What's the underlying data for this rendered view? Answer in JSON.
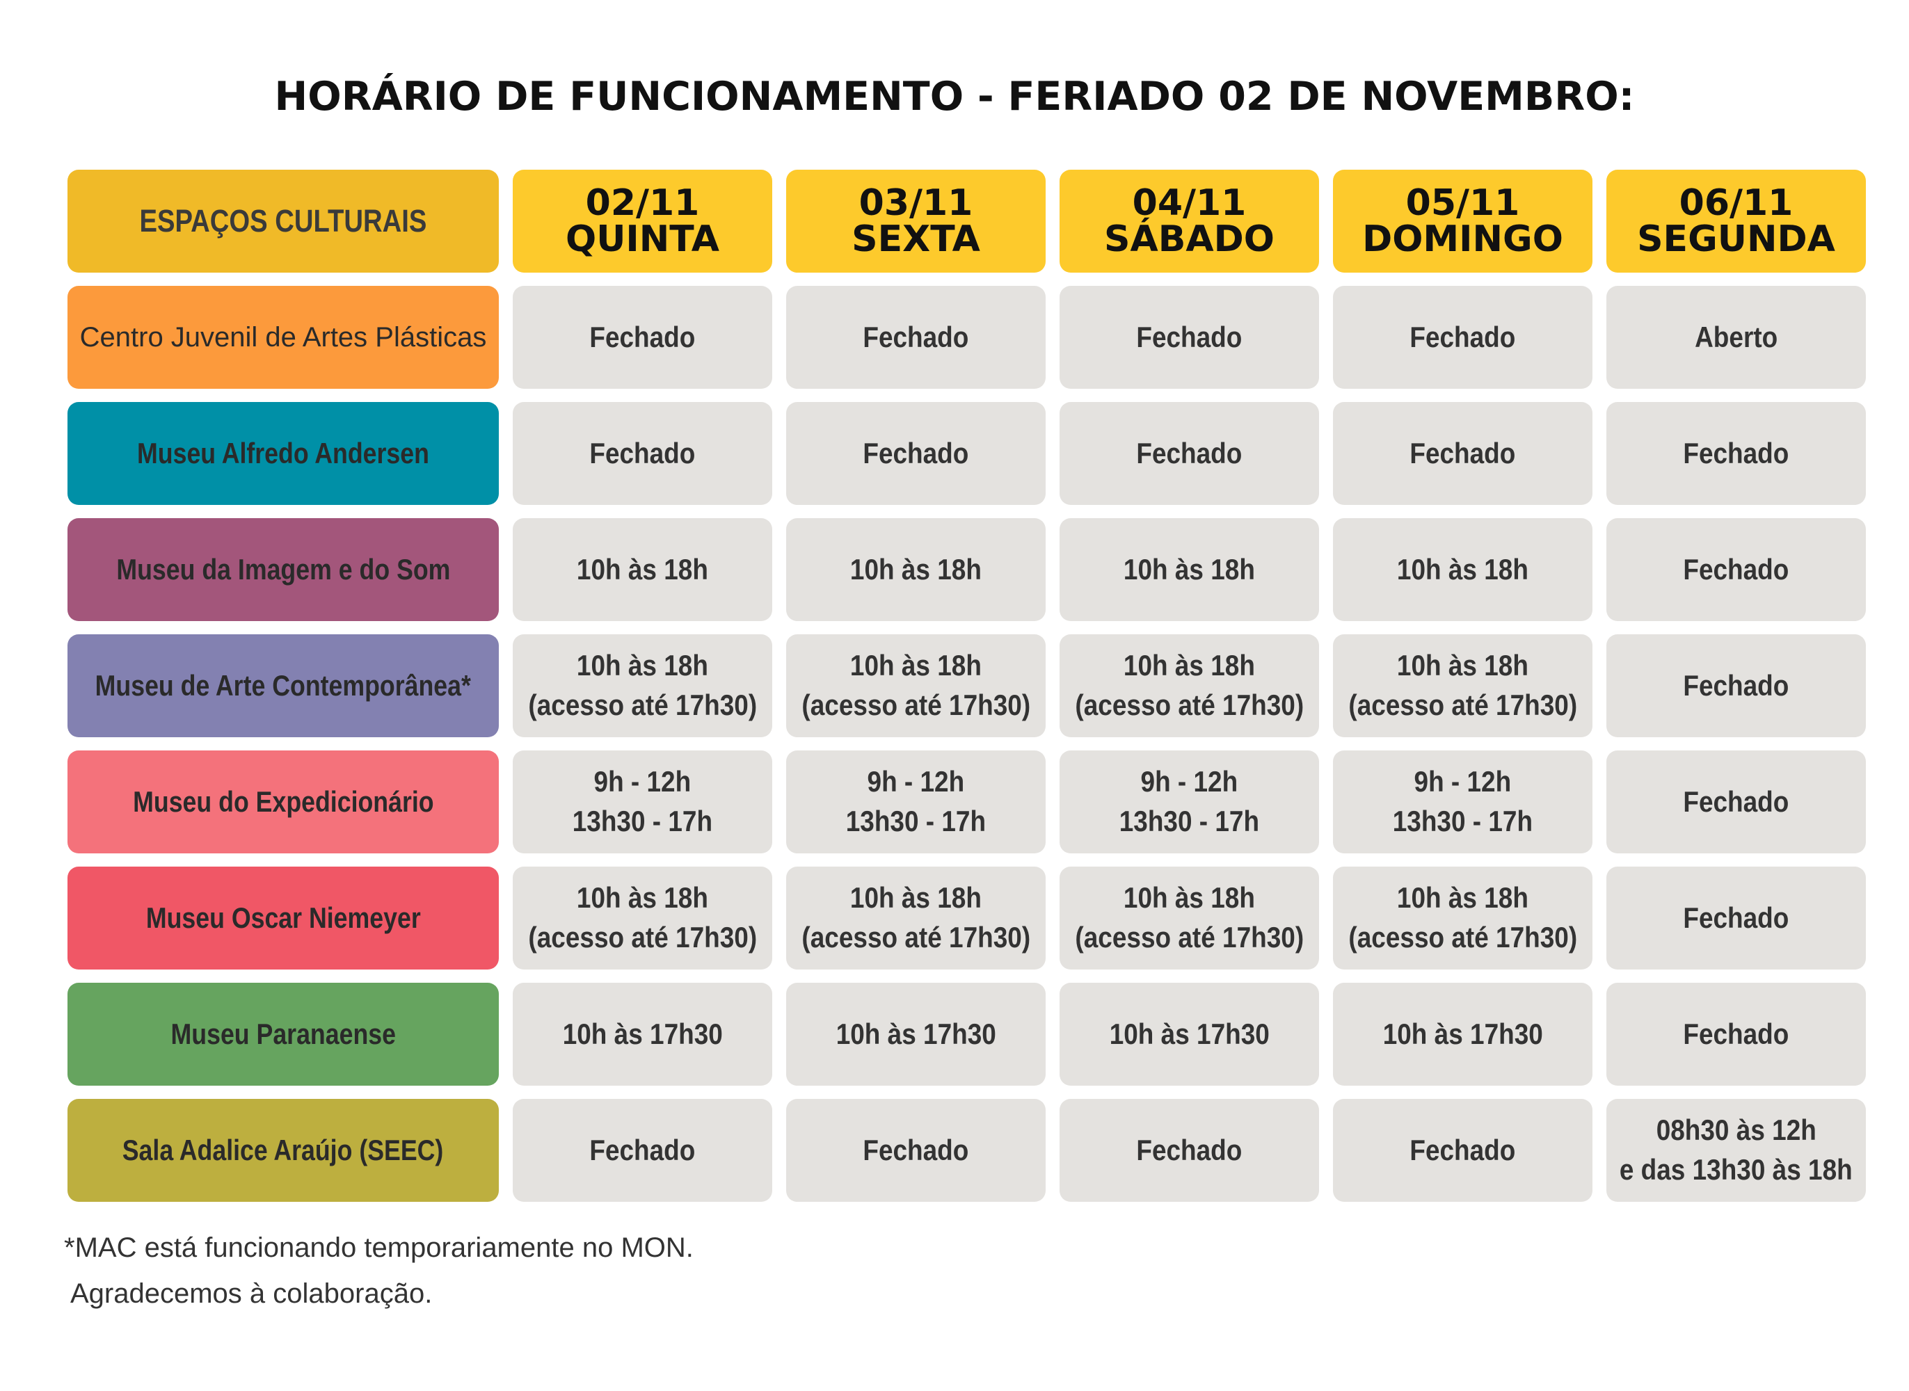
{
  "title": "HORÁRIO DE FUNCIONAMENTO - FERIADO 02 DE NOVEMBRO:",
  "header": {
    "spaces_label": "ESPAÇOS CULTURAIS",
    "days": [
      {
        "date": "02/11",
        "weekday": "QUINTA"
      },
      {
        "date": "03/11",
        "weekday": "SEXTA"
      },
      {
        "date": "04/11",
        "weekday": "SÁBADO"
      },
      {
        "date": "05/11",
        "weekday": "DOMINGO"
      },
      {
        "date": "06/11",
        "weekday": "SEGUNDA"
      }
    ]
  },
  "rows": [
    {
      "space": "Centro Juvenil de Artes Plásticas",
      "color": "#FC9A3C",
      "hours": [
        [
          "Fechado"
        ],
        [
          "Fechado"
        ],
        [
          "Fechado"
        ],
        [
          "Fechado"
        ],
        [
          "Aberto"
        ]
      ]
    },
    {
      "space": "Museu Alfredo Andersen",
      "color": "#0090A7",
      "hours": [
        [
          "Fechado"
        ],
        [
          "Fechado"
        ],
        [
          "Fechado"
        ],
        [
          "Fechado"
        ],
        [
          "Fechado"
        ]
      ]
    },
    {
      "space": "Museu da Imagem e do Som",
      "color": "#A3567B",
      "hours": [
        [
          "10h às 18h"
        ],
        [
          "10h às 18h"
        ],
        [
          "10h às 18h"
        ],
        [
          "10h às 18h"
        ],
        [
          "Fechado"
        ]
      ]
    },
    {
      "space": "Museu de Arte Contemporânea*",
      "color": "#8381B1",
      "hours": [
        [
          "10h às 18h",
          "(acesso até 17h30)"
        ],
        [
          "10h às 18h",
          "(acesso até 17h30)"
        ],
        [
          "10h às 18h",
          "(acesso até 17h30)"
        ],
        [
          "10h às 18h",
          "(acesso até 17h30)"
        ],
        [
          "Fechado"
        ]
      ]
    },
    {
      "space": "Museu do Expedicionário",
      "color": "#F4727B",
      "hours": [
        [
          "9h - 12h",
          "13h30 - 17h"
        ],
        [
          "9h - 12h",
          "13h30 - 17h"
        ],
        [
          "9h - 12h",
          "13h30 - 17h"
        ],
        [
          "9h - 12h",
          "13h30 - 17h"
        ],
        [
          "Fechado"
        ]
      ]
    },
    {
      "space": "Museu Oscar Niemeyer",
      "color": "#F05766",
      "hours": [
        [
          "10h às 18h",
          "(acesso até 17h30)"
        ],
        [
          "10h às 18h",
          "(acesso até 17h30)"
        ],
        [
          "10h às 18h",
          "(acesso até 17h30)"
        ],
        [
          "10h às 18h",
          "(acesso até 17h30)"
        ],
        [
          "Fechado"
        ]
      ]
    },
    {
      "space": "Museu Paranaense",
      "color": "#66A45F",
      "hours": [
        [
          "10h às 17h30"
        ],
        [
          "10h às 17h30"
        ],
        [
          "10h às 17h30"
        ],
        [
          "10h às 17h30"
        ],
        [
          "Fechado"
        ]
      ]
    },
    {
      "space": "Sala Adalice Araújo (SEEC)",
      "color": "#BDAF3F",
      "hours": [
        [
          "Fechado"
        ],
        [
          "Fechado"
        ],
        [
          "Fechado"
        ],
        [
          "Fechado"
        ],
        [
          "08h30 às 12h",
          "e das 13h30 às 18h"
        ]
      ]
    }
  ],
  "footer": {
    "note": "*MAC está funcionando temporariamente no MON.",
    "thanks": "Agradecemos à colaboração."
  }
}
